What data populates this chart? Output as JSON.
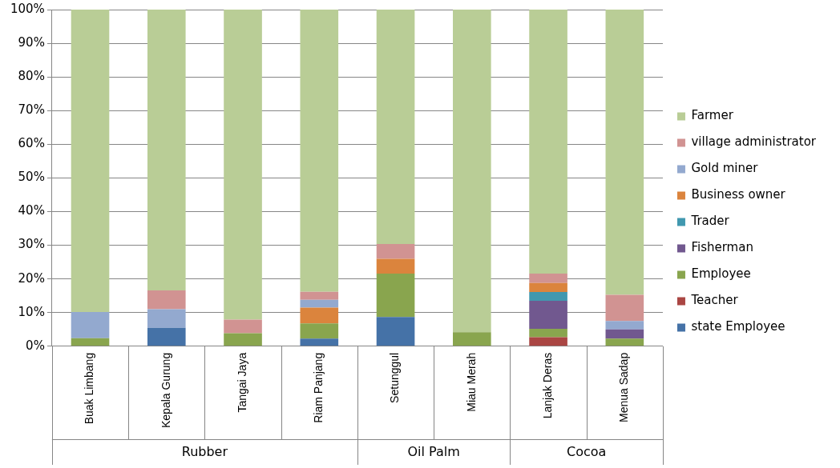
{
  "chart_data": {
    "type": "bar",
    "stacked": true,
    "categories": [
      "Buak Limbang",
      "Kepala Gurung",
      "Tangai Jaya",
      "Riam Panjang",
      "Setunggul",
      "Miau Merah",
      "Lanjak Deras",
      "Menua Sadap"
    ],
    "series": [
      {
        "name": "state Employee",
        "color": "#4572a7",
        "values": [
          0,
          5.5,
          0,
          2.3,
          8.7,
          0,
          0,
          0
        ]
      },
      {
        "name": "Teacher",
        "color": "#aa4643",
        "values": [
          0,
          0,
          0,
          0,
          0,
          0,
          2.7,
          0
        ]
      },
      {
        "name": "Employee",
        "color": "#89a54e",
        "values": [
          2.4,
          0,
          3.9,
          4.5,
          12.9,
          4.2,
          2.5,
          2.3
        ]
      },
      {
        "name": "Fisherman",
        "color": "#71588f",
        "values": [
          0,
          0,
          0,
          0,
          0,
          0,
          8.3,
          2.7
        ]
      },
      {
        "name": "Trader",
        "color": "#4198af",
        "values": [
          0,
          0,
          0,
          0,
          0,
          0,
          2.6,
          0
        ]
      },
      {
        "name": "Business owner",
        "color": "#db843d",
        "values": [
          0,
          0,
          0,
          4.7,
          4.4,
          0,
          2.7,
          0
        ]
      },
      {
        "name": "Gold miner",
        "color": "#93a9cf",
        "values": [
          7.8,
          5.5,
          0,
          2.3,
          0,
          0,
          0,
          2.5
        ]
      },
      {
        "name": "village administrator",
        "color": "#d19392",
        "values": [
          0,
          5.6,
          4.0,
          2.4,
          4.4,
          0,
          2.8,
          7.8
        ]
      },
      {
        "name": "Farmer",
        "color": "#b9cd96",
        "values": [
          89.8,
          83.4,
          92.1,
          83.8,
          69.6,
          95.8,
          78.4,
          84.7
        ]
      }
    ],
    "ylim": [
      0,
      100
    ],
    "yticks": [
      {
        "value": 0,
        "label": "0%"
      },
      {
        "value": 10,
        "label": "10%"
      },
      {
        "value": 20,
        "label": "20%"
      },
      {
        "value": 30,
        "label": "30%"
      },
      {
        "value": 40,
        "label": "40%"
      },
      {
        "value": 50,
        "label": "50%"
      },
      {
        "value": 60,
        "label": "60%"
      },
      {
        "value": 70,
        "label": "70%"
      },
      {
        "value": 80,
        "label": "80%"
      },
      {
        "value": 90,
        "label": "90%"
      },
      {
        "value": 100,
        "label": "100%"
      }
    ],
    "grid": "y",
    "legend": "right",
    "annotations": [
      "Rubber",
      "Oil Palm",
      "Cocoa"
    ]
  }
}
